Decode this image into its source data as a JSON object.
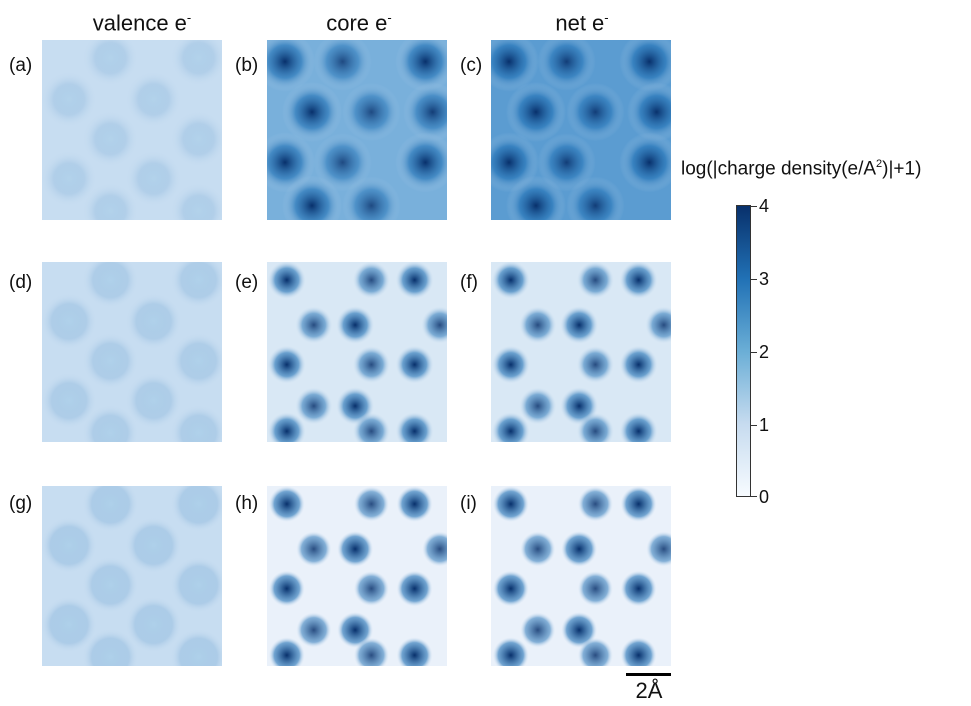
{
  "column_headers": [
    {
      "text": "valence e",
      "sup": "-"
    },
    {
      "text": "core e",
      "sup": "-"
    },
    {
      "text": "net e",
      "sup": "-"
    }
  ],
  "panels": [
    {
      "label": "(a)",
      "lattice": "A",
      "intensity": 0.4,
      "sharpness": 0.5
    },
    {
      "label": "(b)",
      "lattice": "A",
      "intensity": 1.0,
      "sharpness": 0.5
    },
    {
      "label": "(c)",
      "lattice": "A",
      "intensity": 1.1,
      "sharpness": 0.5
    },
    {
      "label": "(d)",
      "lattice": "B",
      "intensity": 0.45,
      "sharpness": 0.75
    },
    {
      "label": "(e)",
      "lattice": "B",
      "intensity": 1.0,
      "sharpness": 0.75
    },
    {
      "label": "(f)",
      "lattice": "B",
      "intensity": 1.0,
      "sharpness": 0.75
    },
    {
      "label": "(g)",
      "lattice": "B",
      "intensity": 0.48,
      "sharpness": 0.9
    },
    {
      "label": "(h)",
      "lattice": "B",
      "intensity": 1.0,
      "sharpness": 1.0
    },
    {
      "label": "(i)",
      "lattice": "B",
      "intensity": 1.0,
      "sharpness": 1.0
    }
  ],
  "colorbar": {
    "title": {
      "pre": "log(|charge density(e/A",
      "sup": "2",
      "post": ")|+1)"
    },
    "range": [
      0,
      4
    ],
    "ticks": [
      "0",
      "1",
      "2",
      "3",
      "4"
    ],
    "colors": [
      "#f7fbff",
      "#c6dbef",
      "#6aaed6",
      "#2171b5",
      "#08306b"
    ]
  },
  "scale_bar": {
    "label": "2Å"
  }
}
